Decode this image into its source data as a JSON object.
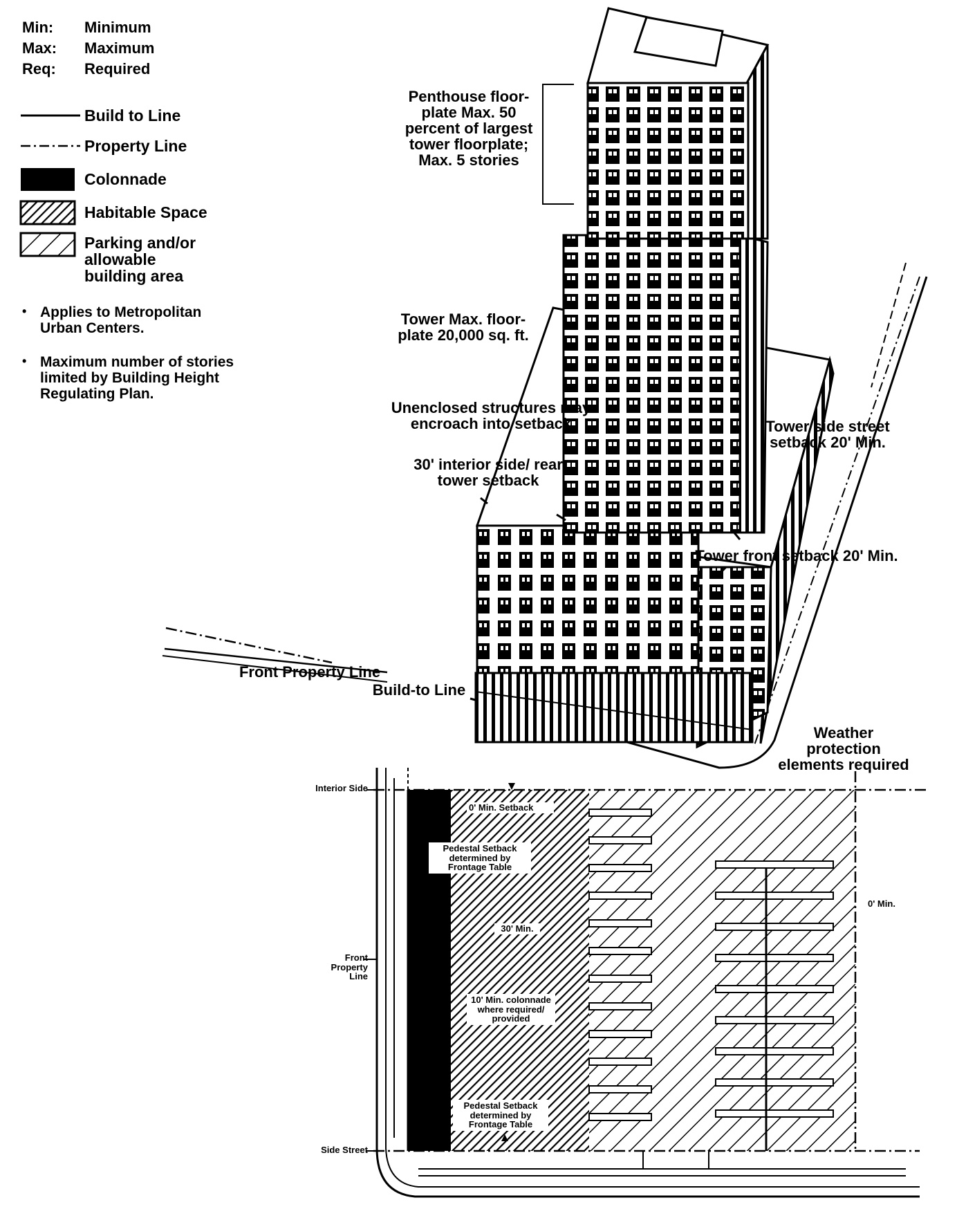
{
  "legend": {
    "abbreviations": [
      {
        "abbr": "Min:",
        "meaning": "Minimum"
      },
      {
        "abbr": "Max:",
        "meaning": "Maximum"
      },
      {
        "abbr": "Req:",
        "meaning": "Required"
      }
    ],
    "line_items": [
      {
        "label": "Build to Line",
        "style": "solid"
      },
      {
        "label": "Property Line",
        "style": "dash-dot"
      }
    ],
    "fill_items": [
      {
        "label": "Colonnade",
        "pattern": "solid-black"
      },
      {
        "label": "Habitable Space",
        "pattern": "dense-hatch"
      },
      {
        "label": "Parking and/or allowable building area",
        "pattern": "wide-hatch"
      }
    ],
    "notes": [
      "Applies to Metropolitan Urban Centers.",
      "Maximum number of stories limited by Building Height Regulating Plan."
    ]
  },
  "axonometric": {
    "penthouse": "Penthouse floor-plate Max. 50 percent of largest tower floorplate; Max. 5 stories",
    "tower_floorplate": "Tower Max. floor-plate 20,000 sq. ft.",
    "unenclosed": "Unenclosed structures may encroach into setback",
    "interior_setback": "30' interior side/ rear tower setback",
    "side_street_setback": "Tower side street setback 20' Min.",
    "front_setback": "Tower front setback 20' Min.",
    "front_property_line": "Front Property Line",
    "build_to_line": "Build-to Line",
    "weather": "Weather protection elements required"
  },
  "plan": {
    "interior_side": "Interior Side",
    "front_property_line": "Front Property Line",
    "side_street": "Side Street",
    "min_setback": "0' Min. Setback",
    "pedestal_top": "Pedestal Setback determined by Frontage Table",
    "depth": "30' Min.",
    "colonnade_req": "10' Min. colonnade where required/ provided",
    "pedestal_bottom": "Pedestal Setback determined by Frontage Table",
    "right_min": "0' Min."
  },
  "colors": {
    "ink": "#000000",
    "paper": "#ffffff"
  }
}
